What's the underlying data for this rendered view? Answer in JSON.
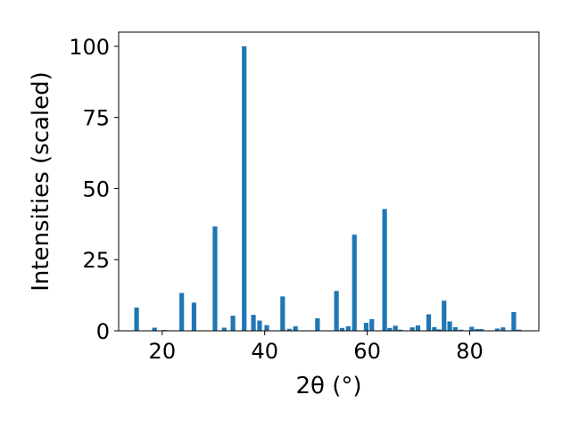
{
  "chart_data": {
    "type": "bar",
    "title": "",
    "xlabel": "2θ (°)",
    "ylabel": "Intensities (scaled)",
    "xlim": [
      11.5,
      93.5
    ],
    "ylim": [
      0,
      105
    ],
    "xticks": [
      20,
      40,
      60,
      80
    ],
    "yticks": [
      0,
      25,
      50,
      75,
      100
    ],
    "bar_color": "#1f77b4",
    "grid": false,
    "legend": "none",
    "series": [
      {
        "x": [
          15.0,
          18.5,
          20.5,
          23.8,
          26.2,
          30.3,
          32.1,
          33.8,
          36.0,
          37.8,
          39.0,
          40.4,
          43.5,
          44.8,
          46.0,
          50.3,
          54.0,
          55.1,
          56.3,
          57.5,
          59.8,
          60.9,
          63.4,
          64.4,
          65.5,
          66.5,
          68.8,
          69.9,
          72.0,
          73.1,
          74.0,
          75.0,
          76.1,
          77.2,
          78.3,
          80.4,
          81.4,
          82.3,
          85.4,
          86.5,
          88.6,
          89.6
        ],
        "y": [
          8.2,
          1.1,
          0.3,
          13.3,
          9.9,
          36.7,
          1.1,
          5.3,
          100,
          5.6,
          3.6,
          2.0,
          12.1,
          0.7,
          1.6,
          4.4,
          14.0,
          1.0,
          1.6,
          33.8,
          2.8,
          4.1,
          42.8,
          1.0,
          1.8,
          0.4,
          1.2,
          1.9,
          5.8,
          1.3,
          0.5,
          10.6,
          3.3,
          1.3,
          0.4,
          1.4,
          0.6,
          0.6,
          0.8,
          1.2,
          6.6,
          0.4
        ]
      }
    ]
  }
}
